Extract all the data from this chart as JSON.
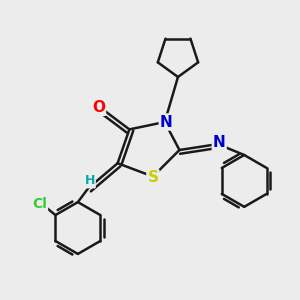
{
  "background_color": "#ececec",
  "bond_color": "#1a1a1a",
  "atom_colors": {
    "O": "#ff0000",
    "N": "#0000cc",
    "S": "#cccc00",
    "Cl": "#33cc33",
    "H": "#00aaaa",
    "C": "#1a1a1a"
  },
  "figsize": [
    3.0,
    3.0
  ],
  "dpi": 100
}
